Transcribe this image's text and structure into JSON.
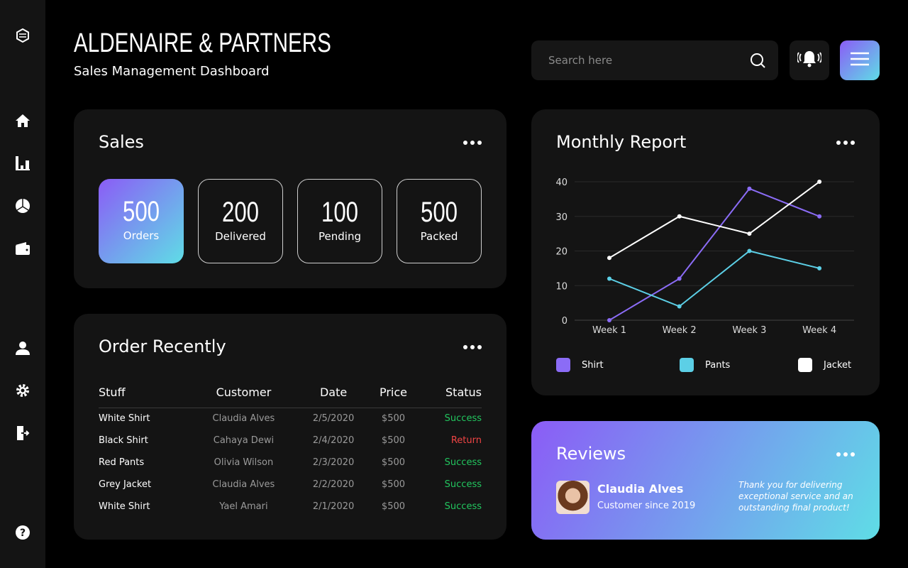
{
  "header": {
    "title": "ALDENAIRE & PARTNERS",
    "subtitle": "Sales Management Dashboard",
    "search_placeholder": "Search here"
  },
  "sidebar": {
    "items": [
      "logo",
      "home",
      "bar-chart",
      "pie-chart",
      "wallet",
      "user",
      "settings",
      "logout",
      "help"
    ]
  },
  "sales": {
    "title": "Sales",
    "stats": [
      {
        "value": "500",
        "label": "Orders"
      },
      {
        "value": "200",
        "label": "Delivered"
      },
      {
        "value": "100",
        "label": "Pending"
      },
      {
        "value": "500",
        "label": "Packed"
      }
    ]
  },
  "orders": {
    "title": "Order Recently",
    "columns": [
      "Stuff",
      "Customer",
      "Date",
      "Price",
      "Status"
    ],
    "rows": [
      [
        "White Shirt",
        "Claudia Alves",
        "2/5/2020",
        "$500",
        "Success"
      ],
      [
        "Black Shirt",
        "Cahaya Dewi",
        "2/4/2020",
        "$500",
        "Return"
      ],
      [
        "Red Pants",
        "Olivia Wilson",
        "2/3/2020",
        "$500",
        "Success"
      ],
      [
        "Grey Jacket",
        "Claudia Alves",
        "2/2/2020",
        "$500",
        "Success"
      ],
      [
        "White Shirt",
        "Yael Amari",
        "2/1/2020",
        "$500",
        "Success"
      ]
    ]
  },
  "colors": {
    "success": "#22c55e",
    "return": "#ef4444"
  },
  "chart_data": {
    "type": "line",
    "title": "Monthly Report",
    "categories": [
      "Week 1",
      "Week 2",
      "Week 3",
      "Week 4"
    ],
    "ylim": [
      0,
      40
    ],
    "yticks": [
      0,
      10,
      20,
      30,
      40
    ],
    "legend": "bottom",
    "grid": true,
    "series": [
      {
        "name": "Shirt",
        "color": "#8b6cf6",
        "values": [
          0,
          12,
          38,
          30
        ]
      },
      {
        "name": "Pants",
        "color": "#5ccfe6",
        "values": [
          12,
          4,
          20,
          15
        ]
      },
      {
        "name": "Jacket",
        "color": "#ffffff",
        "values": [
          18,
          30,
          25,
          40
        ]
      }
    ]
  },
  "reviews": {
    "title": "Reviews",
    "name": "Claudia Alves",
    "since": "Customer since 2019",
    "quote": "Thank you for delivering exceptional service and an outstanding final product!"
  }
}
